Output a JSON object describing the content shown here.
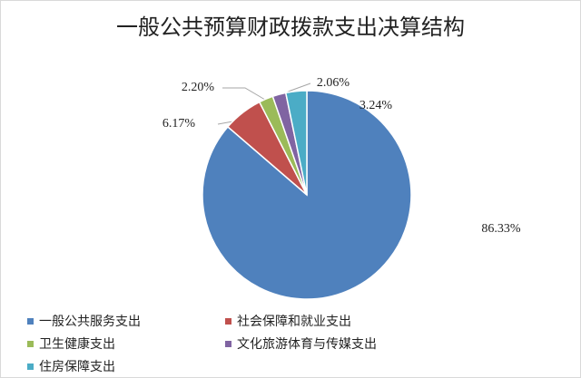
{
  "chart_data": {
    "type": "pie",
    "title": "一般公共预算财政拨款支出决算结构",
    "categories": [
      "一般公共服务支出",
      "社会保障和就业支出",
      "卫生健康支出",
      "文化旅游体育与传媒支出",
      "住房保障支出"
    ],
    "values": [
      86.33,
      6.17,
      2.2,
      2.06,
      3.24
    ],
    "value_labels": [
      "86.33%",
      "6.17%",
      "2.20%",
      "2.06%",
      "3.24%"
    ],
    "colors": [
      "#4f81bd",
      "#c0504d",
      "#9bbb59",
      "#8064a2",
      "#4bacc6"
    ]
  }
}
